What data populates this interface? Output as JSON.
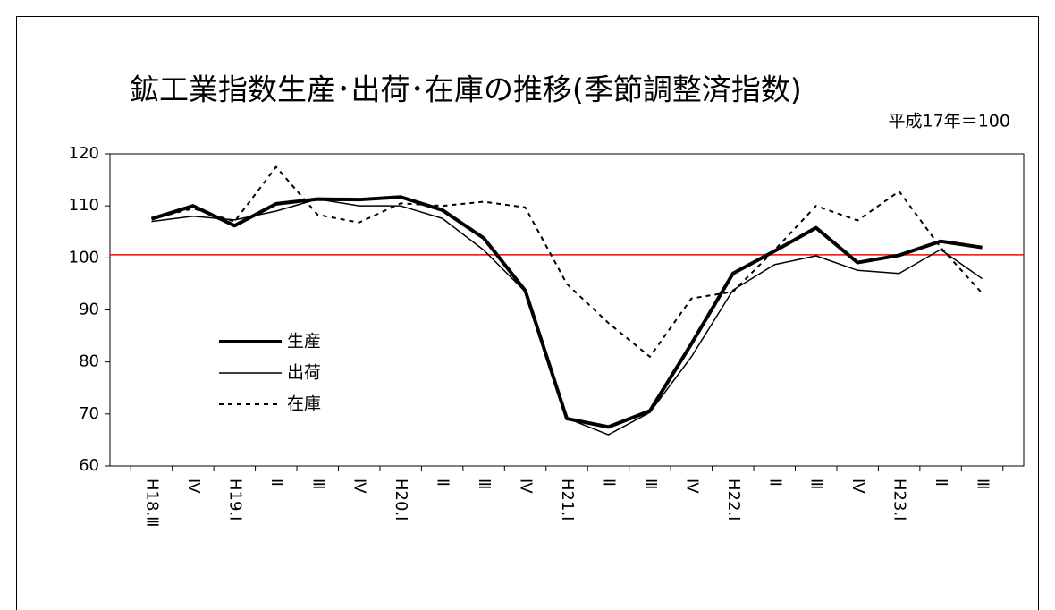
{
  "chart_data": {
    "type": "line",
    "title": "鉱工業指数生産･出荷･在庫の推移(季節調整済指数)",
    "subtitle": "平成17年＝100",
    "categories": [
      "H18.Ⅲ",
      "Ⅳ",
      "H19.Ⅰ",
      "Ⅱ",
      "Ⅲ",
      "Ⅳ",
      "H20.Ⅰ",
      "Ⅱ",
      "Ⅲ",
      "Ⅳ",
      "H21.Ⅰ",
      "Ⅱ",
      "Ⅲ",
      "Ⅳ",
      "H22.Ⅰ",
      "Ⅱ",
      "Ⅲ",
      "Ⅳ",
      "H23.Ⅰ",
      "Ⅱ",
      "Ⅲ"
    ],
    "series": [
      {
        "name": "生産",
        "color": "#000000",
        "style": "thick",
        "values": [
          107.5,
          110,
          106.2,
          110.4,
          111.3,
          111.2,
          111.7,
          109.2,
          103.8,
          93.7,
          69.1,
          67.5,
          70.6,
          83.5,
          97,
          101.3,
          105.8,
          99.1,
          100.5,
          103.2,
          102
        ]
      },
      {
        "name": "出荷",
        "color": "#000000",
        "style": "thin",
        "values": [
          107,
          108,
          107.3,
          109,
          111.3,
          110,
          110,
          107.6,
          101.5,
          93.5,
          69.2,
          66,
          70.3,
          81,
          93.8,
          98.7,
          100.4,
          97.6,
          97,
          101.6,
          96
        ]
      },
      {
        "name": "在庫",
        "color": "#000000",
        "style": "dotted",
        "values": [
          107.5,
          109.5,
          107,
          117.5,
          108.3,
          106.8,
          110.5,
          110,
          110.8,
          109.7,
          95,
          87.5,
          81,
          92.2,
          93.5,
          101.5,
          110,
          107.2,
          112.8,
          102,
          93.2
        ]
      }
    ],
    "reference_line": {
      "value": 100.6,
      "color": "#ff0000"
    },
    "ylim": [
      60,
      120
    ],
    "yticks": [
      60,
      70,
      80,
      90,
      100,
      110,
      120
    ],
    "grid": false
  }
}
